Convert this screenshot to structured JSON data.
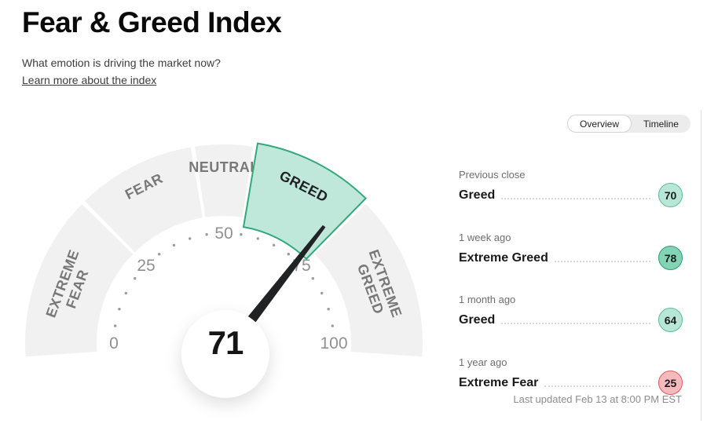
{
  "header": {
    "title": "Fear & Greed Index",
    "subtitle": "What emotion is driving the market now?",
    "link": "Learn more about the index"
  },
  "tabs": {
    "overview": "Overview",
    "timeline": "Timeline",
    "active_tab": "Overview"
  },
  "chart_data": {
    "type": "gauge",
    "title": "Fear & Greed Index gauge",
    "value": 71,
    "value_label": "71",
    "min": 0,
    "max": 100,
    "tick_numbers": [
      0,
      25,
      50,
      75,
      100
    ],
    "minor_tick_step": 5,
    "segments": [
      {
        "label": "EXTREME FEAR",
        "lines": [
          "EXTREME",
          "FEAR"
        ],
        "from": 0,
        "to": 25,
        "active": false
      },
      {
        "label": "FEAR",
        "lines": [
          "FEAR"
        ],
        "from": 25,
        "to": 45,
        "active": false
      },
      {
        "label": "NEUTRAL",
        "lines": [
          "NEUTRAL"
        ],
        "from": 45,
        "to": 55,
        "active": false
      },
      {
        "label": "GREED",
        "lines": [
          "GREED"
        ],
        "from": 55,
        "to": 75,
        "active": true
      },
      {
        "label": "EXTREME GREED",
        "lines": [
          "EXTREME",
          "GREED"
        ],
        "from": 75,
        "to": 100,
        "active": false
      }
    ],
    "colors": {
      "segment_fill": "#f1f1f1",
      "segment_label": "#787878",
      "active_fill": "#bfe8db",
      "active_border": "#33a87d",
      "active_label": "#202124",
      "needle": "#212224",
      "tick": "#9a9a9a",
      "tick_number": "#909090"
    }
  },
  "history": {
    "rows": [
      {
        "period": "Previous close",
        "label": "Greed",
        "value": "70",
        "fill": "#b9e7d7",
        "border": "#57bd97"
      },
      {
        "period": "1 week ago",
        "label": "Extreme Greed",
        "value": "78",
        "fill": "#82d4b4",
        "border": "#2d9c77"
      },
      {
        "period": "1 month ago",
        "label": "Greed",
        "value": "64",
        "fill": "#b9e7d7",
        "border": "#57bd97"
      },
      {
        "period": "1 year ago",
        "label": "Extreme Fear",
        "value": "25",
        "fill": "#f6b9bc",
        "border": "#e05a60"
      }
    ],
    "last_updated": "Last updated Feb 13 at 8:00 PM EST"
  }
}
